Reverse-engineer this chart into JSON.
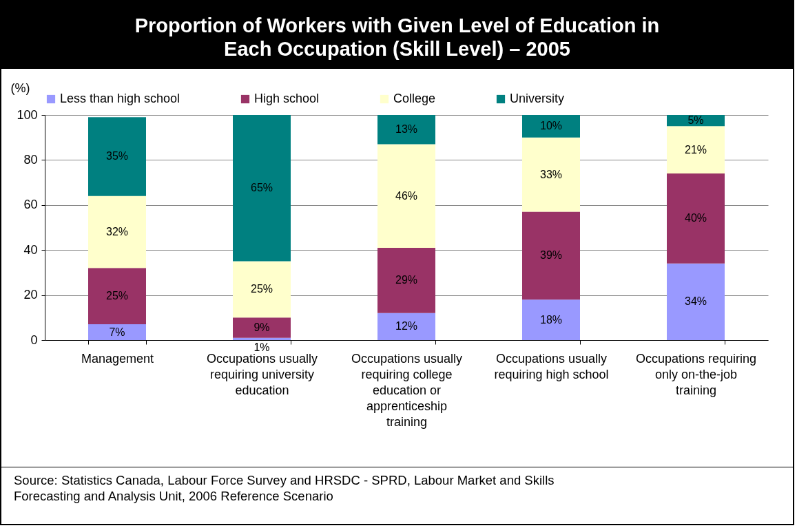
{
  "chart_data": {
    "type": "bar",
    "stacked": true,
    "title": "Proportion of Workers with Given Level of Education in Each Occupation (Skill Level) – 2005",
    "ylabel": "(%)",
    "categories": [
      "Management",
      "Occupations usually requiring university education",
      "Occupations usually requiring college education or apprenticeship training",
      "Occupations usually requiring high school",
      "Occupations requiring only on-the-job training"
    ],
    "series": [
      {
        "name": "Less than high school",
        "color": "#9999ff",
        "values": [
          7,
          1,
          12,
          18,
          34
        ],
        "value_labels": [
          "7%",
          "1%",
          "12%",
          "18%",
          "34%"
        ]
      },
      {
        "name": "High school",
        "color": "#993366",
        "values": [
          25,
          9,
          29,
          39,
          40
        ],
        "value_labels": [
          "25%",
          "9%",
          "29%",
          "39%",
          "40%"
        ]
      },
      {
        "name": "College",
        "color": "#ffffcc",
        "values": [
          32,
          25,
          46,
          33,
          21
        ],
        "value_labels": [
          "32%",
          "25%",
          "46%",
          "33%",
          "21%"
        ]
      },
      {
        "name": "University",
        "color": "#008080",
        "values": [
          35,
          65,
          13,
          10,
          5
        ],
        "value_labels": [
          "35%",
          "65%",
          "13%",
          "10%",
          "5%"
        ]
      }
    ],
    "ylim": [
      0,
      100
    ],
    "yticks": [
      0,
      20,
      40,
      60,
      80,
      100
    ],
    "grid": "y",
    "legend": "top",
    "annotations": [
      "Source: Statistics Canada, Labour Force Survey and HRSDC - SPRD, Labour Market and Skills Forecasting and Analysis Unit, 2006 Reference Scenario"
    ]
  }
}
